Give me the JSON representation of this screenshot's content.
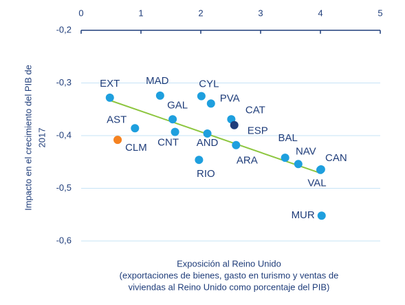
{
  "chart_data": {
    "type": "scatter",
    "x_label": [
      "Exposición al Reino Unido",
      "(exportaciones de bienes, gasto en turismo y ventas de",
      "viviendas al Reino Unido como porcentaje del PIB)"
    ],
    "y_label": [
      "Impacto en el crecimiento del PIB de",
      "2017"
    ],
    "xlim": [
      0,
      5
    ],
    "xticks": [
      0,
      1,
      2,
      3,
      4,
      5
    ],
    "ylim": [
      -0.65,
      -0.2
    ],
    "yticks": [
      {
        "value": -0.2,
        "label": "-0,2"
      },
      {
        "value": -0.3,
        "label": "-0,3"
      },
      {
        "value": -0.4,
        "label": "-0,4"
      },
      {
        "value": -0.5,
        "label": "-0,5"
      },
      {
        "value": -0.6,
        "label": "-0,6"
      }
    ],
    "grid": true,
    "points": [
      {
        "label": "EXT",
        "x": 0.48,
        "y": -0.328,
        "color": "#1e9fde"
      },
      {
        "label": "AST",
        "x": 0.9,
        "y": -0.386,
        "color": "#1e9fde"
      },
      {
        "label": "CLM",
        "x": 0.61,
        "y": -0.408,
        "color": "#f58220"
      },
      {
        "label": "MAD",
        "x": 1.32,
        "y": -0.324,
        "color": "#1e9fde"
      },
      {
        "label": "GAL",
        "x": 1.53,
        "y": -0.369,
        "color": "#1e9fde"
      },
      {
        "label": "CNT",
        "x": 1.57,
        "y": -0.393,
        "color": "#1e9fde"
      },
      {
        "label": "CYL",
        "x": 2.01,
        "y": -0.325,
        "color": "#1e9fde"
      },
      {
        "label": "PVA",
        "x": 2.17,
        "y": -0.339,
        "color": "#1e9fde"
      },
      {
        "label": "AND",
        "x": 2.11,
        "y": -0.396,
        "color": "#1e9fde"
      },
      {
        "label": "RIO",
        "x": 1.97,
        "y": -0.446,
        "color": "#1e9fde"
      },
      {
        "label": "CAT",
        "x": 2.51,
        "y": -0.369,
        "color": "#1e9fde"
      },
      {
        "label": "ESP",
        "x": 2.56,
        "y": -0.38,
        "color": "#1f3d7a"
      },
      {
        "label": "ARA",
        "x": 2.59,
        "y": -0.418,
        "color": "#1e9fde"
      },
      {
        "label": "BAL",
        "x": 3.41,
        "y": -0.442,
        "color": "#1e9fde"
      },
      {
        "label": "NAV",
        "x": 3.63,
        "y": -0.454,
        "color": "#1e9fde"
      },
      {
        "label": "CAN",
        "x": 4.01,
        "y": -0.464,
        "color": "#1e9fde"
      },
      {
        "label": "VAL",
        "x": 4.0,
        "y": -0.465,
        "color": "#1e9fde"
      },
      {
        "label": "MUR",
        "x": 4.02,
        "y": -0.552,
        "color": "#1e9fde"
      }
    ],
    "trendline": {
      "x": [
        0.48,
        4.02
      ],
      "y": [
        -0.333,
        -0.472
      ],
      "color": "#8dc63f"
    }
  }
}
